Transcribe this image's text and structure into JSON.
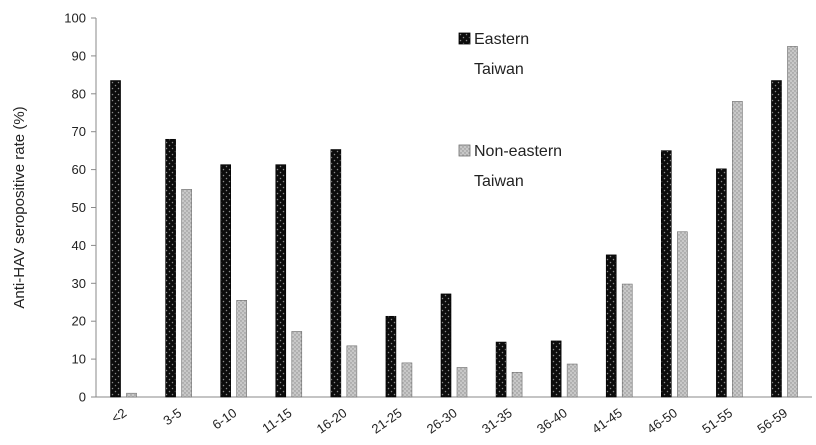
{
  "chart_data": {
    "type": "bar",
    "title": "",
    "xlabel": "",
    "ylabel": "Anti-HAV seropositive rate (%)",
    "ylim": [
      0,
      100
    ],
    "yticks": [
      0,
      10,
      20,
      30,
      40,
      50,
      60,
      70,
      80,
      90,
      100
    ],
    "categories": [
      "<2",
      "3-5",
      "6-10",
      "11-15",
      "16-20",
      "21-25",
      "26-30",
      "31-35",
      "36-40",
      "41-45",
      "46-50",
      "51-55",
      "56-59"
    ],
    "series": [
      {
        "name": "Eastern Taiwan",
        "name_lines": [
          "Eastern",
          "Taiwan"
        ],
        "color": "#111111",
        "pattern": "dotted-dark",
        "values": [
          83.5,
          68,
          61.3,
          61.3,
          65.3,
          21.3,
          27.2,
          14.5,
          14.8,
          37.5,
          65,
          60.2,
          83.5
        ]
      },
      {
        "name": "Non-eastern Taiwan",
        "name_lines": [
          "Non-eastern",
          "Taiwan"
        ],
        "color": "#bdbdbd",
        "pattern": "dotted-light",
        "values": [
          1.0,
          54.8,
          25.5,
          17.3,
          13.5,
          9.0,
          7.8,
          6.5,
          8.7,
          29.8,
          43.6,
          78.0,
          92.5
        ]
      }
    ],
    "grid": false,
    "legend_position": "top-right"
  }
}
